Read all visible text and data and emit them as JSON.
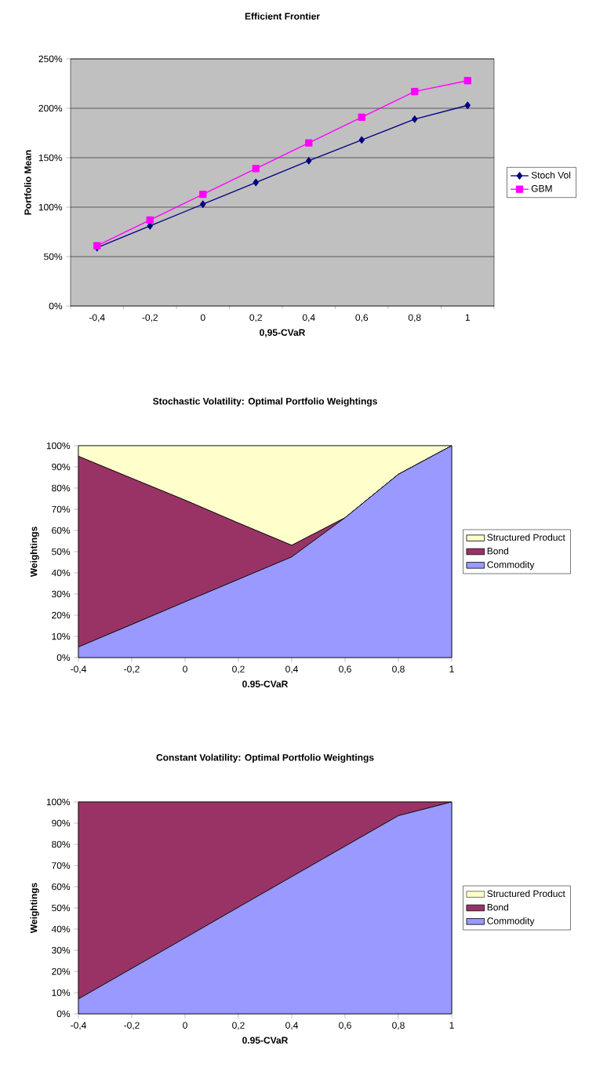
{
  "chart_data": [
    {
      "type": "line",
      "title": "Efficient Frontier",
      "xlabel": "0,95-CVaR",
      "ylabel": "Portfolio Mean",
      "categories": [
        "-0,4",
        "-0,2",
        "0",
        "0,2",
        "0,4",
        "0,6",
        "0,8",
        "1"
      ],
      "series": [
        {
          "name": "Stoch Vol",
          "color": "#000080",
          "marker": "diamond",
          "values": [
            59,
            81,
            103,
            125,
            147,
            168,
            189,
            203
          ]
        },
        {
          "name": "GBM",
          "color": "#ff00ff",
          "marker": "square",
          "values": [
            61,
            87,
            113,
            139,
            165,
            191,
            217,
            228
          ]
        }
      ],
      "ylim": [
        0,
        250
      ],
      "yticks": [
        {
          "value": 0,
          "label": "0%"
        },
        {
          "value": 50,
          "label": "50%"
        },
        {
          "value": 100,
          "label": "100%"
        },
        {
          "value": 150,
          "label": "150%"
        },
        {
          "value": 200,
          "label": "200%"
        },
        {
          "value": 250,
          "label": "250%"
        }
      ],
      "grid": "y",
      "legend": "right"
    },
    {
      "type": "area",
      "stacked": true,
      "title": "Stochastic Volatility: Optimal Portfolio Weightings",
      "xlabel": "0.95-CVaR",
      "ylabel": "Weightings",
      "categories": [
        "-0,4",
        "-0,2",
        "0",
        "0,2",
        "0,4",
        "0,6",
        "0,8",
        "1"
      ],
      "series": [
        {
          "name": "Commodity",
          "color": "#9999ff",
          "values": [
            5,
            15.6,
            26.3,
            36.9,
            47.5,
            66,
            86.5,
            100
          ]
        },
        {
          "name": "Bond",
          "color": "#993366",
          "values": [
            90,
            69,
            48,
            26.6,
            5.5,
            0,
            0,
            0
          ]
        },
        {
          "name": "Structured Product",
          "color": "#ffffcc",
          "values": [
            5,
            15.4,
            25.7,
            36.5,
            47,
            34,
            13.5,
            0
          ]
        }
      ],
      "ylim": [
        0,
        100
      ],
      "yticks": [
        {
          "value": 0,
          "label": "0%"
        },
        {
          "value": 10,
          "label": "10%"
        },
        {
          "value": 20,
          "label": "20%"
        },
        {
          "value": 30,
          "label": "30%"
        },
        {
          "value": 40,
          "label": "40%"
        },
        {
          "value": 50,
          "label": "50%"
        },
        {
          "value": 60,
          "label": "60%"
        },
        {
          "value": 70,
          "label": "70%"
        },
        {
          "value": 80,
          "label": "80%"
        },
        {
          "value": 90,
          "label": "90%"
        },
        {
          "value": 100,
          "label": "100%"
        }
      ],
      "legend": "right"
    },
    {
      "type": "area",
      "stacked": true,
      "title": "Constant Volatility: Optimal Portfolio Weightings",
      "xlabel": "0.95-CVaR",
      "ylabel": "Weightings",
      "categories": [
        "-0,4",
        "-0,2",
        "0",
        "0,2",
        "0,4",
        "0,6",
        "0,8",
        "1"
      ],
      "series": [
        {
          "name": "Commodity",
          "color": "#9999ff",
          "values": [
            7,
            21.4,
            35.8,
            50.3,
            64.7,
            79.1,
            93.5,
            100
          ]
        },
        {
          "name": "Bond",
          "color": "#993366",
          "values": [
            93,
            78.6,
            64.2,
            49.7,
            35.3,
            20.9,
            6.5,
            0
          ]
        },
        {
          "name": "Structured Product",
          "color": "#ffffcc",
          "values": [
            null,
            null,
            null,
            null,
            null,
            null,
            null,
            null
          ]
        }
      ],
      "ylim": [
        0,
        100
      ],
      "yticks": [
        {
          "value": 0,
          "label": "0%"
        },
        {
          "value": 10,
          "label": "10%"
        },
        {
          "value": 20,
          "label": "20%"
        },
        {
          "value": 30,
          "label": "30%"
        },
        {
          "value": 40,
          "label": "40%"
        },
        {
          "value": 50,
          "label": "50%"
        },
        {
          "value": 60,
          "label": "60%"
        },
        {
          "value": 70,
          "label": "70%"
        },
        {
          "value": 80,
          "label": "80%"
        },
        {
          "value": 90,
          "label": "90%"
        },
        {
          "value": 100,
          "label": "100%"
        }
      ],
      "legend": "right"
    }
  ]
}
